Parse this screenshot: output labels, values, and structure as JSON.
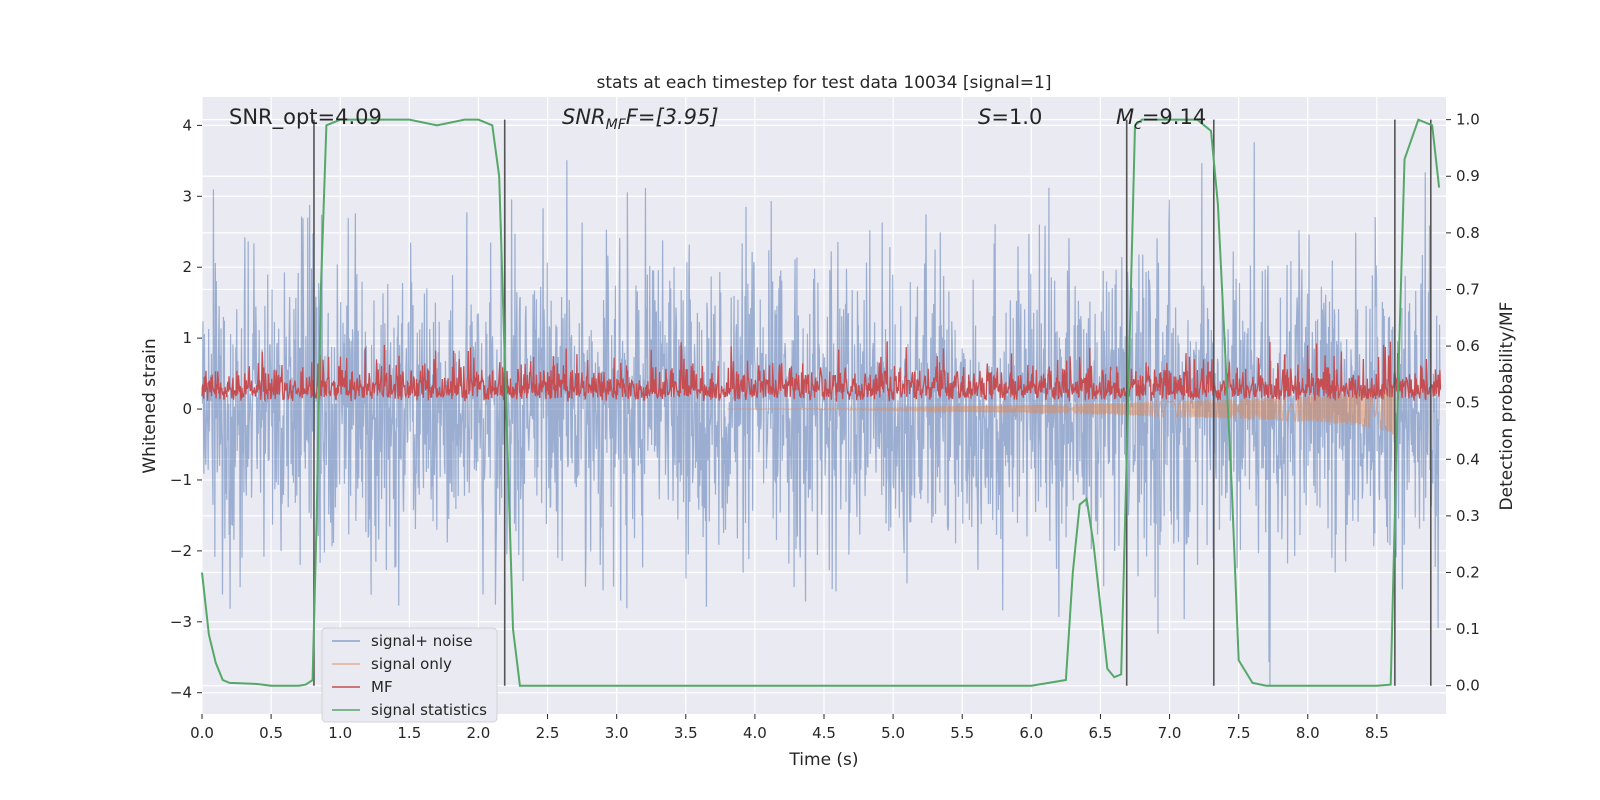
{
  "chart_data": {
    "type": "line",
    "title": "stats at each timestep for test data 10034 [signal=1]",
    "xlabel": "Time (s)",
    "ylabel": "Whitened strain",
    "ylabel_right": "Detection probability/MF",
    "xlim": [
      0.0,
      9.0
    ],
    "ylim": [
      -4.3,
      4.4
    ],
    "ylim_right": [
      -0.05,
      1.04
    ],
    "x_ticks": [
      "0.0",
      "0.5",
      "1.0",
      "1.5",
      "2.0",
      "2.5",
      "3.0",
      "3.5",
      "4.0",
      "4.5",
      "5.0",
      "5.5",
      "6.0",
      "6.5",
      "7.0",
      "7.5",
      "8.0",
      "8.5"
    ],
    "y_ticks": [
      "4",
      "3",
      "2",
      "1",
      "0",
      "−1",
      "−2",
      "−3",
      "−4"
    ],
    "y_ticks_right": [
      "1.0",
      "0.9",
      "0.8",
      "0.7",
      "0.6",
      "0.5",
      "0.4",
      "0.3",
      "0.2",
      "0.1",
      "0.0"
    ],
    "grid": true,
    "legend_position": "lower-left",
    "annotations": {
      "snr_opt": "SNR_opt=4.09",
      "snr_mf_main": "SNR",
      "snr_mf_sub": "MF",
      "snr_mf_value": "F=[3.95]",
      "s_main": "S",
      "s_value": "=1.0",
      "mc_main": "M",
      "mc_sub": "c",
      "mc_value": "=9.14"
    },
    "vertical_markers": [
      0.81,
      2.19,
      6.69,
      7.32,
      8.63,
      8.89
    ],
    "series": [
      {
        "name": "signal+ noise",
        "color": "#4c72b0",
        "alpha": 0.5,
        "description_range": [
          -4.0,
          4.0
        ],
        "upper_envelope": [
          2.4,
          2.5,
          2.6,
          2.4,
          2.5,
          2.6,
          2.4,
          2.6,
          2.5,
          3.0,
          2.5,
          2.7,
          2.8,
          2.5,
          2.7,
          2.5,
          2.9,
          2.6,
          2.5,
          2.6
        ],
        "lower_envelope": [
          -2.4,
          -2.6,
          -2.5,
          -2.4,
          -2.6,
          -2.7,
          -2.5,
          -2.6,
          -2.4,
          -3.0,
          -2.6,
          -2.6,
          -2.8,
          -2.5,
          -2.7,
          -2.4,
          -2.8,
          -2.6,
          -2.5,
          -2.6
        ]
      },
      {
        "name": "signal only",
        "color": "#dd8452",
        "alpha": 0.5,
        "x": [
          0.0,
          4.0,
          5.0,
          5.5,
          6.0,
          6.5,
          7.0,
          7.5,
          8.0,
          8.3,
          8.5,
          8.6,
          8.63
        ],
        "amplitude": [
          0.0,
          0.0,
          0.02,
          0.04,
          0.06,
          0.08,
          0.11,
          0.14,
          0.18,
          0.22,
          0.28,
          0.34,
          0.4
        ]
      },
      {
        "name": "MF",
        "color": "#c44e52",
        "alpha": 1.0,
        "baseline": 0.1,
        "typical_peak": 0.6,
        "max_peak": 0.95
      },
      {
        "name": "signal statistics",
        "color": "#55a868",
        "axis": "right",
        "x": [
          0.0,
          0.05,
          0.1,
          0.15,
          0.2,
          0.3,
          0.4,
          0.5,
          0.6,
          0.7,
          0.75,
          0.8,
          0.83,
          0.86,
          0.9,
          1.0,
          1.2,
          1.5,
          1.7,
          1.8,
          1.9,
          2.0,
          2.1,
          2.15,
          2.2,
          2.25,
          2.3,
          2.5,
          3.0,
          4.0,
          5.0,
          6.0,
          6.25,
          6.3,
          6.35,
          6.4,
          6.45,
          6.55,
          6.6,
          6.65,
          6.7,
          6.75,
          6.8,
          7.0,
          7.2,
          7.3,
          7.35,
          7.4,
          7.45,
          7.5,
          7.6,
          7.7,
          8.0,
          8.5,
          8.6,
          8.65,
          8.7,
          8.8,
          8.9,
          8.95
        ],
        "y": [
          0.2,
          0.09,
          0.04,
          0.01,
          0.005,
          0.004,
          0.003,
          0.0,
          0.0,
          0.0,
          0.002,
          0.01,
          0.3,
          0.7,
          0.99,
          1.0,
          1.0,
          1.0,
          0.99,
          0.995,
          1.0,
          1.0,
          0.99,
          0.9,
          0.5,
          0.1,
          0.0,
          0.0,
          0.0,
          0.0,
          0.0,
          0.0,
          0.01,
          0.2,
          0.32,
          0.33,
          0.25,
          0.03,
          0.015,
          0.02,
          0.5,
          0.99,
          1.0,
          1.0,
          1.0,
          0.98,
          0.85,
          0.6,
          0.35,
          0.045,
          0.005,
          0.0,
          0.0,
          0.0,
          0.002,
          0.5,
          0.93,
          1.0,
          0.99,
          0.88
        ]
      }
    ]
  }
}
